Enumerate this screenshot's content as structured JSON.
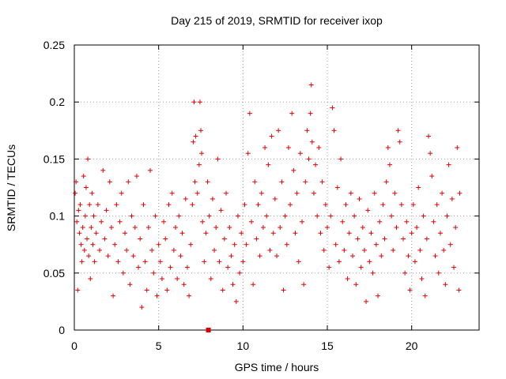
{
  "chart_data": {
    "type": "scatter",
    "title": "Day 215 of 2019, SRMTID for receiver ixop",
    "xlabel": "GPS time / hours",
    "ylabel": "SRMTID / TECUs",
    "xlim": [
      0,
      24
    ],
    "ylim": [
      0,
      0.25
    ],
    "xticks": [
      0,
      5,
      10,
      15,
      20
    ],
    "xtick_labels": [
      "0",
      "5",
      "10",
      "15",
      "20"
    ],
    "yticks": [
      0,
      0.05,
      0.1,
      0.15,
      0.2,
      0.25
    ],
    "ytick_labels": [
      "0",
      "0.05",
      "0.1",
      "0.15",
      "0.2",
      "0.25"
    ],
    "grid": true,
    "marker": "plus",
    "color": "#e00000",
    "highlight_point": {
      "x": 7.95,
      "y": 0.0
    },
    "series": [
      {
        "name": "SRMTID",
        "points": [
          [
            0.05,
            0.12
          ],
          [
            0.1,
            0.13
          ],
          [
            0.15,
            0.095
          ],
          [
            0.2,
            0.035
          ],
          [
            0.25,
            0.105
          ],
          [
            0.3,
            0.085
          ],
          [
            0.35,
            0.11
          ],
          [
            0.4,
            0.075
          ],
          [
            0.45,
            0.06
          ],
          [
            0.5,
            0.09
          ],
          [
            0.55,
            0.135
          ],
          [
            0.6,
            0.07
          ],
          [
            0.65,
            0.1
          ],
          [
            0.7,
            0.125
          ],
          [
            0.75,
            0.08
          ],
          [
            0.8,
            0.15
          ],
          [
            0.85,
            0.065
          ],
          [
            0.9,
            0.11
          ],
          [
            0.95,
            0.045
          ],
          [
            1.0,
            0.09
          ],
          [
            1.05,
            0.12
          ],
          [
            1.1,
            0.075
          ],
          [
            1.15,
            0.1
          ],
          [
            1.2,
            0.06
          ],
          [
            1.3,
            0.085
          ],
          [
            1.4,
            0.11
          ],
          [
            1.5,
            0.07
          ],
          [
            1.6,
            0.095
          ],
          [
            1.7,
            0.14
          ],
          [
            1.8,
            0.08
          ],
          [
            1.9,
            0.105
          ],
          [
            2.0,
            0.065
          ],
          [
            2.1,
            0.13
          ],
          [
            2.2,
            0.09
          ],
          [
            2.3,
            0.03
          ],
          [
            2.4,
            0.075
          ],
          [
            2.5,
            0.11
          ],
          [
            2.6,
            0.06
          ],
          [
            2.7,
            0.095
          ],
          [
            2.8,
            0.12
          ],
          [
            2.9,
            0.05
          ],
          [
            3.0,
            0.085
          ],
          [
            3.1,
            0.07
          ],
          [
            3.2,
            0.13
          ],
          [
            3.3,
            0.04
          ],
          [
            3.4,
            0.1
          ],
          [
            3.5,
            0.065
          ],
          [
            3.6,
            0.09
          ],
          [
            3.7,
            0.135
          ],
          [
            3.8,
            0.055
          ],
          [
            3.9,
            0.08
          ],
          [
            4.0,
            0.02
          ],
          [
            4.1,
            0.11
          ],
          [
            4.2,
            0.06
          ],
          [
            4.3,
            0.035
          ],
          [
            4.4,
            0.09
          ],
          [
            4.5,
            0.14
          ],
          [
            4.6,
            0.07
          ],
          [
            4.7,
            0.05
          ],
          [
            4.8,
            0.1
          ],
          [
            4.9,
            0.03
          ],
          [
            5.0,
            0.075
          ],
          [
            5.1,
            0.06
          ],
          [
            5.2,
            0.045
          ],
          [
            5.3,
            0.095
          ],
          [
            5.4,
            0.08
          ],
          [
            5.5,
            0.035
          ],
          [
            5.6,
            0.11
          ],
          [
            5.7,
            0.055
          ],
          [
            5.8,
            0.12
          ],
          [
            5.9,
            0.07
          ],
          [
            6.0,
            0.09
          ],
          [
            6.1,
            0.045
          ],
          [
            6.2,
            0.1
          ],
          [
            6.3,
            0.065
          ],
          [
            6.4,
            0.085
          ],
          [
            6.5,
            0.04
          ],
          [
            6.6,
            0.115
          ],
          [
            6.7,
            0.055
          ],
          [
            6.8,
            0.03
          ],
          [
            6.9,
            0.075
          ],
          [
            7.0,
            0.11
          ],
          [
            7.05,
            0.165
          ],
          [
            7.1,
            0.2
          ],
          [
            7.15,
            0.13
          ],
          [
            7.2,
            0.17
          ],
          [
            7.3,
            0.12
          ],
          [
            7.4,
            0.145
          ],
          [
            7.45,
            0.2
          ],
          [
            7.5,
            0.175
          ],
          [
            7.55,
            0.155
          ],
          [
            7.6,
            0.095
          ],
          [
            7.7,
            0.06
          ],
          [
            7.8,
            0.085
          ],
          [
            7.9,
            0.13
          ],
          [
            8.0,
            0.1
          ],
          [
            8.1,
            0.045
          ],
          [
            8.2,
            0.115
          ],
          [
            8.3,
            0.07
          ],
          [
            8.4,
            0.09
          ],
          [
            8.5,
            0.15
          ],
          [
            8.6,
            0.06
          ],
          [
            8.7,
            0.105
          ],
          [
            8.8,
            0.035
          ],
          [
            8.9,
            0.08
          ],
          [
            9.0,
            0.12
          ],
          [
            9.1,
            0.055
          ],
          [
            9.2,
            0.09
          ],
          [
            9.3,
            0.065
          ],
          [
            9.4,
            0.04
          ],
          [
            9.5,
            0.075
          ],
          [
            9.6,
            0.025
          ],
          [
            9.7,
            0.1
          ],
          [
            9.8,
            0.05
          ],
          [
            9.9,
            0.085
          ],
          [
            10.0,
            0.06
          ],
          [
            10.1,
            0.11
          ],
          [
            10.2,
            0.075
          ],
          [
            10.3,
            0.155
          ],
          [
            10.4,
            0.19
          ],
          [
            10.5,
            0.095
          ],
          [
            10.6,
            0.04
          ],
          [
            10.7,
            0.13
          ],
          [
            10.8,
            0.08
          ],
          [
            10.9,
            0.11
          ],
          [
            11.0,
            0.065
          ],
          [
            11.1,
            0.12
          ],
          [
            11.2,
            0.09
          ],
          [
            11.3,
            0.16
          ],
          [
            11.4,
            0.1
          ],
          [
            11.5,
            0.145
          ],
          [
            11.6,
            0.07
          ],
          [
            11.7,
            0.17
          ],
          [
            11.8,
            0.085
          ],
          [
            11.9,
            0.115
          ],
          [
            12.0,
            0.065
          ],
          [
            12.1,
            0.175
          ],
          [
            12.2,
            0.09
          ],
          [
            12.3,
            0.13
          ],
          [
            12.4,
            0.035
          ],
          [
            12.5,
            0.1
          ],
          [
            12.6,
            0.075
          ],
          [
            12.7,
            0.16
          ],
          [
            12.8,
            0.11
          ],
          [
            12.9,
            0.19
          ],
          [
            13.0,
            0.14
          ],
          [
            13.1,
            0.085
          ],
          [
            13.2,
            0.12
          ],
          [
            13.3,
            0.06
          ],
          [
            13.4,
            0.155
          ],
          [
            13.5,
            0.095
          ],
          [
            13.6,
            0.04
          ],
          [
            13.7,
            0.13
          ],
          [
            13.8,
            0.175
          ],
          [
            13.9,
            0.15
          ],
          [
            14.0,
            0.19
          ],
          [
            14.05,
            0.215
          ],
          [
            14.1,
            0.165
          ],
          [
            14.2,
            0.12
          ],
          [
            14.3,
            0.145
          ],
          [
            14.4,
            0.1
          ],
          [
            14.5,
            0.16
          ],
          [
            14.6,
            0.085
          ],
          [
            14.7,
            0.13
          ],
          [
            14.8,
            0.07
          ],
          [
            14.9,
            0.11
          ],
          [
            15.0,
            0.09
          ],
          [
            15.1,
            0.055
          ],
          [
            15.2,
            0.1
          ],
          [
            15.3,
            0.195
          ],
          [
            15.4,
            0.175
          ],
          [
            15.5,
            0.075
          ],
          [
            15.6,
            0.125
          ],
          [
            15.7,
            0.06
          ],
          [
            15.8,
            0.15
          ],
          [
            15.9,
            0.095
          ],
          [
            16.0,
            0.07
          ],
          [
            16.1,
            0.11
          ],
          [
            16.2,
            0.045
          ],
          [
            16.3,
            0.085
          ],
          [
            16.4,
            0.12
          ],
          [
            16.5,
            0.065
          ],
          [
            16.6,
            0.1
          ],
          [
            16.7,
            0.04
          ],
          [
            16.8,
            0.08
          ],
          [
            16.9,
            0.115
          ],
          [
            17.0,
            0.055
          ],
          [
            17.1,
            0.09
          ],
          [
            17.2,
            0.07
          ],
          [
            17.3,
            0.025
          ],
          [
            17.4,
            0.105
          ],
          [
            17.5,
            0.06
          ],
          [
            17.6,
            0.085
          ],
          [
            17.7,
            0.05
          ],
          [
            17.8,
            0.12
          ],
          [
            17.9,
            0.075
          ],
          [
            18.0,
            0.03
          ],
          [
            18.1,
            0.095
          ],
          [
            18.2,
            0.065
          ],
          [
            18.3,
            0.11
          ],
          [
            18.4,
            0.08
          ],
          [
            18.5,
            0.13
          ],
          [
            18.6,
            0.16
          ],
          [
            18.7,
            0.145
          ],
          [
            18.8,
            0.1
          ],
          [
            18.9,
            0.07
          ],
          [
            19.0,
            0.12
          ],
          [
            19.1,
            0.09
          ],
          [
            19.2,
            0.175
          ],
          [
            19.3,
            0.165
          ],
          [
            19.4,
            0.11
          ],
          [
            19.5,
            0.08
          ],
          [
            19.6,
            0.05
          ],
          [
            19.7,
            0.095
          ],
          [
            19.8,
            0.065
          ],
          [
            19.9,
            0.035
          ],
          [
            20.0,
            0.085
          ],
          [
            20.1,
            0.11
          ],
          [
            20.2,
            0.06
          ],
          [
            20.3,
            0.09
          ],
          [
            20.4,
            0.125
          ],
          [
            20.5,
            0.07
          ],
          [
            20.6,
            0.045
          ],
          [
            20.7,
            0.1
          ],
          [
            20.8,
            0.03
          ],
          [
            20.9,
            0.08
          ],
          [
            21.0,
            0.17
          ],
          [
            21.1,
            0.155
          ],
          [
            21.2,
            0.135
          ],
          [
            21.3,
            0.095
          ],
          [
            21.4,
            0.065
          ],
          [
            21.5,
            0.11
          ],
          [
            21.6,
            0.05
          ],
          [
            21.7,
            0.085
          ],
          [
            21.8,
            0.12
          ],
          [
            21.9,
            0.07
          ],
          [
            22.0,
            0.04
          ],
          [
            22.1,
            0.1
          ],
          [
            22.2,
            0.145
          ],
          [
            22.3,
            0.075
          ],
          [
            22.4,
            0.115
          ],
          [
            22.5,
            0.055
          ],
          [
            22.6,
            0.09
          ],
          [
            22.7,
            0.16
          ],
          [
            22.8,
            0.035
          ],
          [
            22.85,
            0.12
          ]
        ]
      }
    ]
  }
}
